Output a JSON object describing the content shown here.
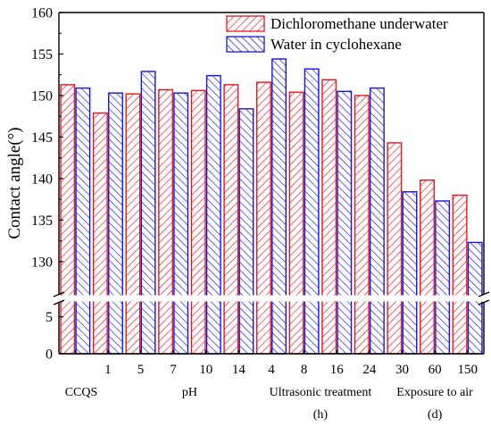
{
  "chart_data": {
    "type": "bar",
    "ylabel": "Contact angle(°)",
    "yticks_upper": [
      130,
      135,
      140,
      145,
      150,
      155,
      160
    ],
    "yticks_lower": [
      0,
      5
    ],
    "ylim_upper": [
      126,
      160
    ],
    "ylim_lower": [
      0,
      7
    ],
    "axis_break": true,
    "legend_position": "top-right",
    "categories": [
      "",
      "1",
      "5",
      "7",
      "10",
      "14",
      "4",
      "8",
      "16",
      "24",
      "30",
      "60",
      "150"
    ],
    "group_labels": [
      {
        "text": "CCQS",
        "center_index": 0,
        "row": 1
      },
      {
        "text": "pH",
        "center_index": 3.5,
        "row": 1
      },
      {
        "text": "Ultrasonic treatment",
        "center_index": 7.5,
        "row": 1
      },
      {
        "text": "(h)",
        "center_index": 7.5,
        "row": 2
      },
      {
        "text": "Exposure to air",
        "center_index": 11,
        "row": 1
      },
      {
        "text": "(d)",
        "center_index": 11,
        "row": 2
      }
    ],
    "series": [
      {
        "name": "Dichloromethane underwater",
        "color": "#e8141e",
        "values": [
          151.3,
          147.9,
          150.2,
          150.7,
          150.6,
          151.3,
          151.6,
          150.4,
          151.9,
          150.0,
          144.3,
          139.8,
          138.0
        ]
      },
      {
        "name": "Water in cyclohexane",
        "color": "#1414e6",
        "values": [
          150.9,
          150.3,
          152.9,
          150.3,
          152.4,
          148.4,
          154.4,
          153.2,
          150.5,
          150.9,
          138.4,
          137.3,
          132.3
        ]
      }
    ]
  }
}
